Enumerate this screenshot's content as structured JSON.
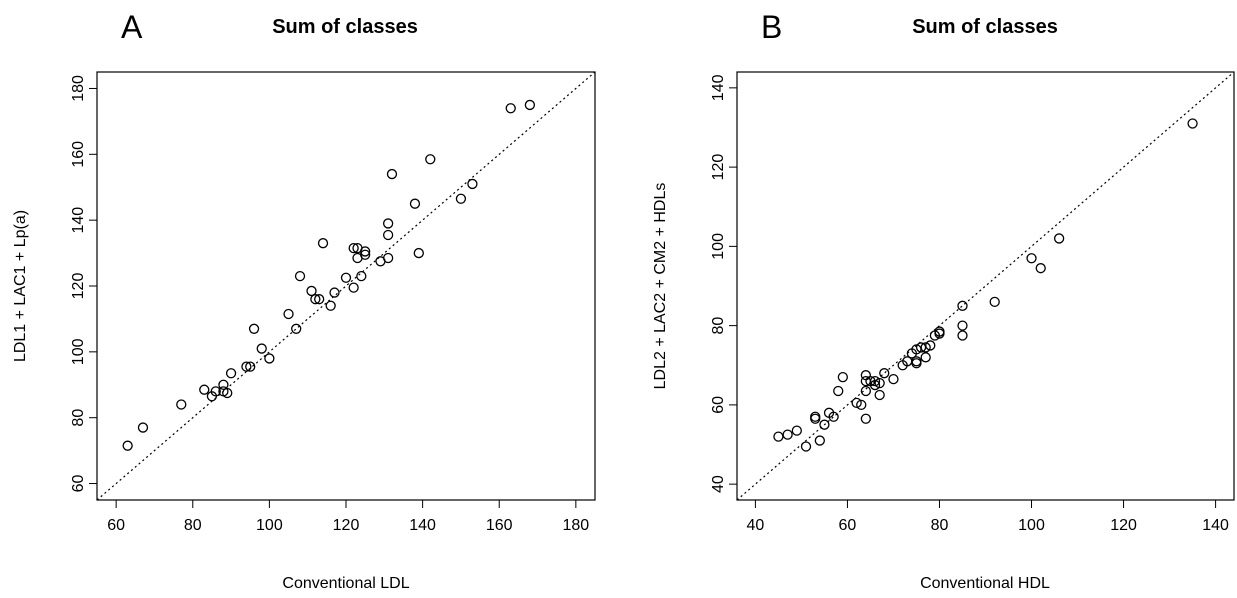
{
  "chart_data": [
    {
      "type": "scatter",
      "panel_label": "A",
      "title": "Sum of classes",
      "xlabel": "Conventional LDL",
      "ylabel": "LDL1 + LAC1 + Lp(a)",
      "xlim": [
        55,
        185
      ],
      "ylim": [
        55,
        185
      ],
      "xticks": [
        60,
        80,
        100,
        120,
        140,
        160,
        180
      ],
      "yticks": [
        60,
        80,
        100,
        120,
        140,
        160,
        180
      ],
      "identity_line": true,
      "marker": "open-circle",
      "points": [
        [
          63,
          71.5
        ],
        [
          67,
          77
        ],
        [
          77,
          84
        ],
        [
          83,
          88.5
        ],
        [
          85,
          86.5
        ],
        [
          86,
          88
        ],
        [
          88,
          90
        ],
        [
          88,
          88
        ],
        [
          89,
          87.5
        ],
        [
          90,
          93.5
        ],
        [
          94,
          95.5
        ],
        [
          95,
          95.5
        ],
        [
          96,
          107
        ],
        [
          98,
          101
        ],
        [
          100,
          98
        ],
        [
          105,
          111.5
        ],
        [
          107,
          107
        ],
        [
          108,
          123
        ],
        [
          111,
          118.5
        ],
        [
          112,
          116
        ],
        [
          113,
          116
        ],
        [
          114,
          133
        ],
        [
          116,
          114
        ],
        [
          117,
          118
        ],
        [
          120,
          122.5
        ],
        [
          122,
          119.5
        ],
        [
          122,
          131.5
        ],
        [
          123,
          131.5
        ],
        [
          123,
          128.5
        ],
        [
          124,
          123
        ],
        [
          125,
          129.5
        ],
        [
          125,
          130.5
        ],
        [
          129,
          127.5
        ],
        [
          131,
          135.5
        ],
        [
          131,
          139
        ],
        [
          131,
          128.5
        ],
        [
          132,
          154
        ],
        [
          138,
          145
        ],
        [
          139,
          130
        ],
        [
          142,
          158.5
        ],
        [
          150,
          146.5
        ],
        [
          153,
          151
        ],
        [
          163,
          174
        ],
        [
          168,
          175
        ]
      ]
    },
    {
      "type": "scatter",
      "panel_label": "B",
      "title": "Sum of classes",
      "xlabel": "Conventional HDL",
      "ylabel": "LDL2 + LAC2 + CM2 + HDLs",
      "xlim": [
        36,
        144
      ],
      "ylim": [
        36,
        144
      ],
      "xticks": [
        40,
        60,
        80,
        100,
        120,
        140
      ],
      "yticks": [
        40,
        60,
        80,
        100,
        120,
        140
      ],
      "identity_line": true,
      "marker": "open-circle",
      "points": [
        [
          45,
          52
        ],
        [
          47,
          52.5
        ],
        [
          49,
          53.5
        ],
        [
          51,
          49.5
        ],
        [
          53,
          57
        ],
        [
          53,
          56.5
        ],
        [
          54,
          51
        ],
        [
          55,
          55
        ],
        [
          56,
          58
        ],
        [
          57,
          57
        ],
        [
          58,
          63.5
        ],
        [
          59,
          67
        ],
        [
          62,
          60.5
        ],
        [
          63,
          60
        ],
        [
          64,
          67.5
        ],
        [
          64,
          66
        ],
        [
          64,
          63.5
        ],
        [
          64,
          56.5
        ],
        [
          65,
          66
        ],
        [
          66,
          66
        ],
        [
          66,
          65
        ],
        [
          67,
          62.5
        ],
        [
          67,
          65.5
        ],
        [
          68,
          68
        ],
        [
          70,
          66.5
        ],
        [
          72,
          70
        ],
        [
          73,
          71
        ],
        [
          74,
          73
        ],
        [
          75,
          74
        ],
        [
          75,
          71
        ],
        [
          75,
          70.5
        ],
        [
          76,
          74.5
        ],
        [
          77,
          72
        ],
        [
          77,
          74.5
        ],
        [
          78,
          75
        ],
        [
          79,
          77.5
        ],
        [
          80,
          78
        ],
        [
          80,
          78.5
        ],
        [
          85,
          85
        ],
        [
          85,
          80
        ],
        [
          85,
          77.5
        ],
        [
          92,
          86
        ],
        [
          100,
          97
        ],
        [
          102,
          94.5
        ],
        [
          106,
          102
        ],
        [
          135,
          131
        ]
      ]
    }
  ]
}
